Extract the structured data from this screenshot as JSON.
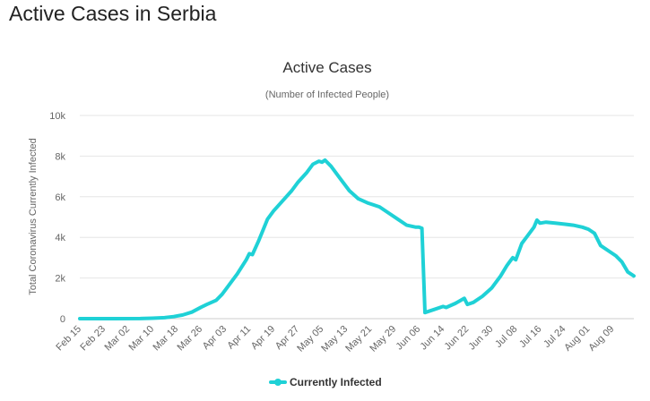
{
  "page": {
    "title": "Active Cases in Serbia"
  },
  "chart_data": {
    "type": "line",
    "title": "Active Cases",
    "subtitle": "(Number of Infected People)",
    "ylabel": "Total Coronavirus Currently Infected",
    "xlabel": "",
    "ylim": [
      0,
      10000
    ],
    "yticks": [
      0,
      2000,
      4000,
      6000,
      8000,
      10000
    ],
    "ytick_labels": [
      "0",
      "2k",
      "4k",
      "6k",
      "8k",
      "10k"
    ],
    "xticks": [
      "Feb 15",
      "Feb 23",
      "Mar 02",
      "Mar 10",
      "Mar 18",
      "Mar 26",
      "Apr 03",
      "Apr 11",
      "Apr 19",
      "Apr 27",
      "May 05",
      "May 13",
      "May 21",
      "May 29",
      "Jun 06",
      "Jun 14",
      "Jun 22",
      "Jun 30",
      "Jul 08",
      "Jul 16",
      "Jul 24",
      "Aug 01",
      "Aug 09"
    ],
    "xlim": [
      "2020-02-15",
      "2020-08-16"
    ],
    "grid": true,
    "legend": "bottom-center",
    "color": "#1fd1d6",
    "series": [
      {
        "name": "Currently Infected",
        "x": [
          "2020-02-15",
          "2020-03-06",
          "2020-03-10",
          "2020-03-14",
          "2020-03-17",
          "2020-03-20",
          "2020-03-23",
          "2020-03-26",
          "2020-03-28",
          "2020-03-31",
          "2020-04-02",
          "2020-04-04",
          "2020-04-07",
          "2020-04-10",
          "2020-04-11",
          "2020-04-12",
          "2020-04-14",
          "2020-04-17",
          "2020-04-19",
          "2020-04-22",
          "2020-04-25",
          "2020-04-27",
          "2020-04-30",
          "2020-05-02",
          "2020-05-04",
          "2020-05-05",
          "2020-05-06",
          "2020-05-08",
          "2020-05-11",
          "2020-05-14",
          "2020-05-17",
          "2020-05-20",
          "2020-05-22",
          "2020-05-24",
          "2020-05-27",
          "2020-05-30",
          "2020-06-02",
          "2020-06-05",
          "2020-06-06",
          "2020-06-07",
          "2020-06-08",
          "2020-06-11",
          "2020-06-14",
          "2020-06-15",
          "2020-06-18",
          "2020-06-21",
          "2020-06-22",
          "2020-06-24",
          "2020-06-27",
          "2020-06-30",
          "2020-07-03",
          "2020-07-05",
          "2020-07-06",
          "2020-07-07",
          "2020-07-08",
          "2020-07-10",
          "2020-07-12",
          "2020-07-14",
          "2020-07-15",
          "2020-07-16",
          "2020-07-18",
          "2020-07-21",
          "2020-07-24",
          "2020-07-27",
          "2020-07-30",
          "2020-08-01",
          "2020-08-02",
          "2020-08-03",
          "2020-08-05",
          "2020-08-08",
          "2020-08-10",
          "2020-08-12",
          "2020-08-14",
          "2020-08-16"
        ],
        "values": [
          0,
          5,
          20,
          50,
          100,
          180,
          320,
          560,
          700,
          900,
          1200,
          1600,
          2200,
          2900,
          3200,
          3150,
          3800,
          4900,
          5300,
          5800,
          6300,
          6700,
          7200,
          7600,
          7750,
          7700,
          7800,
          7500,
          6900,
          6300,
          5900,
          5700,
          5600,
          5500,
          5200,
          4900,
          4600,
          4500,
          4500,
          4450,
          300,
          450,
          600,
          550,
          750,
          1000,
          700,
          800,
          1100,
          1500,
          2100,
          2600,
          2800,
          3000,
          2900,
          3700,
          4100,
          4500,
          4850,
          4700,
          4750,
          4700,
          4650,
          4600,
          4500,
          4400,
          4300,
          4200,
          3600,
          3300,
          3100,
          2800,
          2300,
          2100
        ]
      }
    ]
  }
}
